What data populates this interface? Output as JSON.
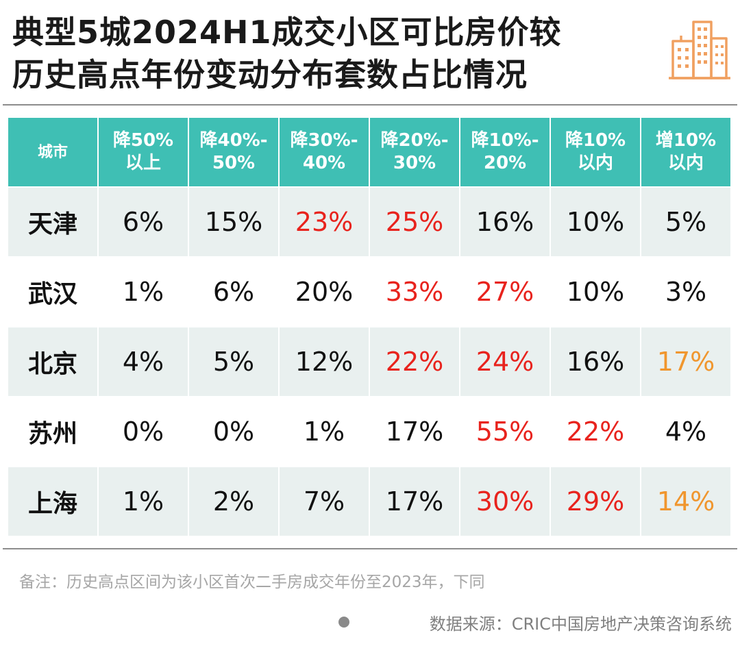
{
  "title": {
    "line1": "典型5城2024H1成交小区可比房价较",
    "line2": "历史高点年份变动分布套数占比情况"
  },
  "icon": "building-icon",
  "colors": {
    "header_bg": "#3fbfb4",
    "header_text": "#ffffff",
    "row_tint": "#e9f0ef",
    "normal": "#111111",
    "high": "#e8231d",
    "increase": "#f0962e",
    "icon": "#f0a060"
  },
  "chart_data": {
    "type": "table",
    "title": "典型5城2024H1成交小区可比房价较历史高点年份变动分布套数占比情况",
    "columns": [
      {
        "line1": "城市",
        "line2": ""
      },
      {
        "line1": "降50%",
        "line2": "以上"
      },
      {
        "line1": "降40%-",
        "line2": "50%"
      },
      {
        "line1": "降30%-",
        "line2": "40%"
      },
      {
        "line1": "降20%-",
        "line2": "30%"
      },
      {
        "line1": "降10%-",
        "line2": "20%"
      },
      {
        "line1": "降10%",
        "line2": "以内"
      },
      {
        "line1": "增10%",
        "line2": "以内"
      }
    ],
    "rows": [
      {
        "city": "天津",
        "values": [
          "6%",
          "15%",
          "23%",
          "25%",
          "16%",
          "10%",
          "5%"
        ],
        "highlight": [
          "normal",
          "normal",
          "high",
          "high",
          "normal",
          "normal",
          "normal"
        ]
      },
      {
        "city": "武汉",
        "values": [
          "1%",
          "6%",
          "20%",
          "33%",
          "27%",
          "10%",
          "3%"
        ],
        "highlight": [
          "normal",
          "normal",
          "normal",
          "high",
          "high",
          "normal",
          "normal"
        ]
      },
      {
        "city": "北京",
        "values": [
          "4%",
          "5%",
          "12%",
          "22%",
          "24%",
          "16%",
          "17%"
        ],
        "highlight": [
          "normal",
          "normal",
          "normal",
          "high",
          "high",
          "normal",
          "increase"
        ]
      },
      {
        "city": "苏州",
        "values": [
          "0%",
          "0%",
          "1%",
          "17%",
          "55%",
          "22%",
          "4%"
        ],
        "highlight": [
          "normal",
          "normal",
          "normal",
          "normal",
          "high",
          "high",
          "normal"
        ]
      },
      {
        "city": "上海",
        "values": [
          "1%",
          "2%",
          "7%",
          "17%",
          "30%",
          "29%",
          "14%"
        ],
        "highlight": [
          "normal",
          "normal",
          "normal",
          "normal",
          "high",
          "high",
          "increase"
        ]
      }
    ]
  },
  "footer": {
    "note": "备注：历史高点区间为该小区首次二手房成交年份至2023年，下同",
    "source": "数据来源：CRIC中国房地产决策咨询系统"
  }
}
